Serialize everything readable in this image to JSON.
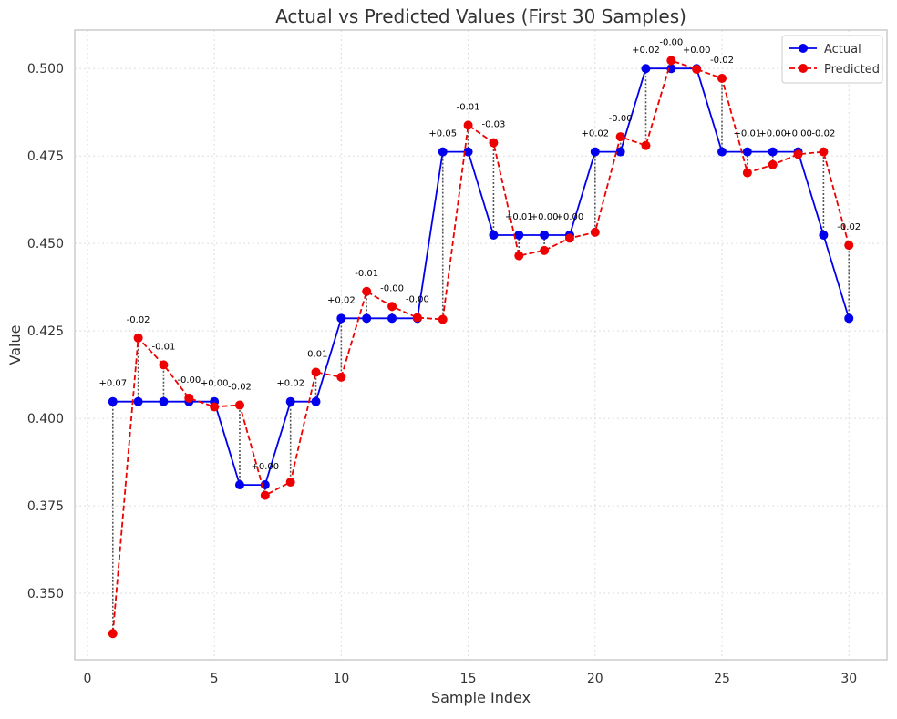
{
  "chart_data": {
    "type": "line",
    "title": "Actual vs Predicted Values (First 30 Samples)",
    "xlabel": "Sample Index",
    "ylabel": "Value",
    "xlim": [
      -0.5,
      31.5
    ],
    "ylim": [
      0.331,
      0.511
    ],
    "x_ticks": [
      0,
      5,
      10,
      15,
      20,
      25,
      30
    ],
    "y_ticks": [
      0.35,
      0.375,
      0.4,
      0.425,
      0.45,
      0.475,
      0.5
    ],
    "x_tick_labels": [
      "0",
      "5",
      "10",
      "15",
      "20",
      "25",
      "30"
    ],
    "y_tick_labels": [
      "0.350",
      "0.375",
      "0.400",
      "0.425",
      "0.450",
      "0.475",
      "0.500"
    ],
    "grid": true,
    "legend_position": "top-right",
    "x": [
      1,
      2,
      3,
      4,
      5,
      6,
      7,
      8,
      9,
      10,
      11,
      12,
      13,
      14,
      15,
      16,
      17,
      18,
      19,
      20,
      21,
      22,
      23,
      24,
      25,
      26,
      27,
      28,
      29,
      30
    ],
    "series": [
      {
        "name": "Actual",
        "color": "#0000ee",
        "style": "solid",
        "values": [
          0.4048,
          0.4048,
          0.4048,
          0.4048,
          0.4048,
          0.381,
          0.381,
          0.4048,
          0.4048,
          0.4286,
          0.4286,
          0.4286,
          0.4286,
          0.4762,
          0.4762,
          0.4524,
          0.4524,
          0.4524,
          0.4524,
          0.4762,
          0.4762,
          0.5,
          0.5,
          0.5,
          0.4762,
          0.4762,
          0.4762,
          0.4762,
          0.4524,
          0.4286
        ]
      },
      {
        "name": "Predicted",
        "color": "#ee0000",
        "style": "dashed",
        "values": [
          0.3385,
          0.423,
          0.4153,
          0.4058,
          0.4033,
          0.4038,
          0.378,
          0.3818,
          0.4132,
          0.4118,
          0.4363,
          0.432,
          0.4288,
          0.4283,
          0.4838,
          0.4788,
          0.4465,
          0.448,
          0.4515,
          0.4532,
          0.4805,
          0.478,
          0.5023,
          0.4998,
          0.4972,
          0.4702,
          0.4725,
          0.4755,
          0.4762,
          0.4495
        ]
      }
    ],
    "annotations": [
      "+0.07",
      "-0.02",
      "-0.01",
      "-0.00",
      "+0.00",
      "-0.02",
      "+0.00",
      "+0.02",
      "-0.01",
      "+0.02",
      "-0.01",
      "-0.00",
      "-0.00",
      "+0.05",
      "-0.01",
      "-0.03",
      "+0.01",
      "+0.00",
      "+0.00",
      "+0.02",
      "-0.00",
      "+0.02",
      "-0.00",
      "+0.00",
      "-0.02",
      "+0.01",
      "+0.00",
      "+0.00",
      "-0.02",
      "-0.02"
    ]
  }
}
